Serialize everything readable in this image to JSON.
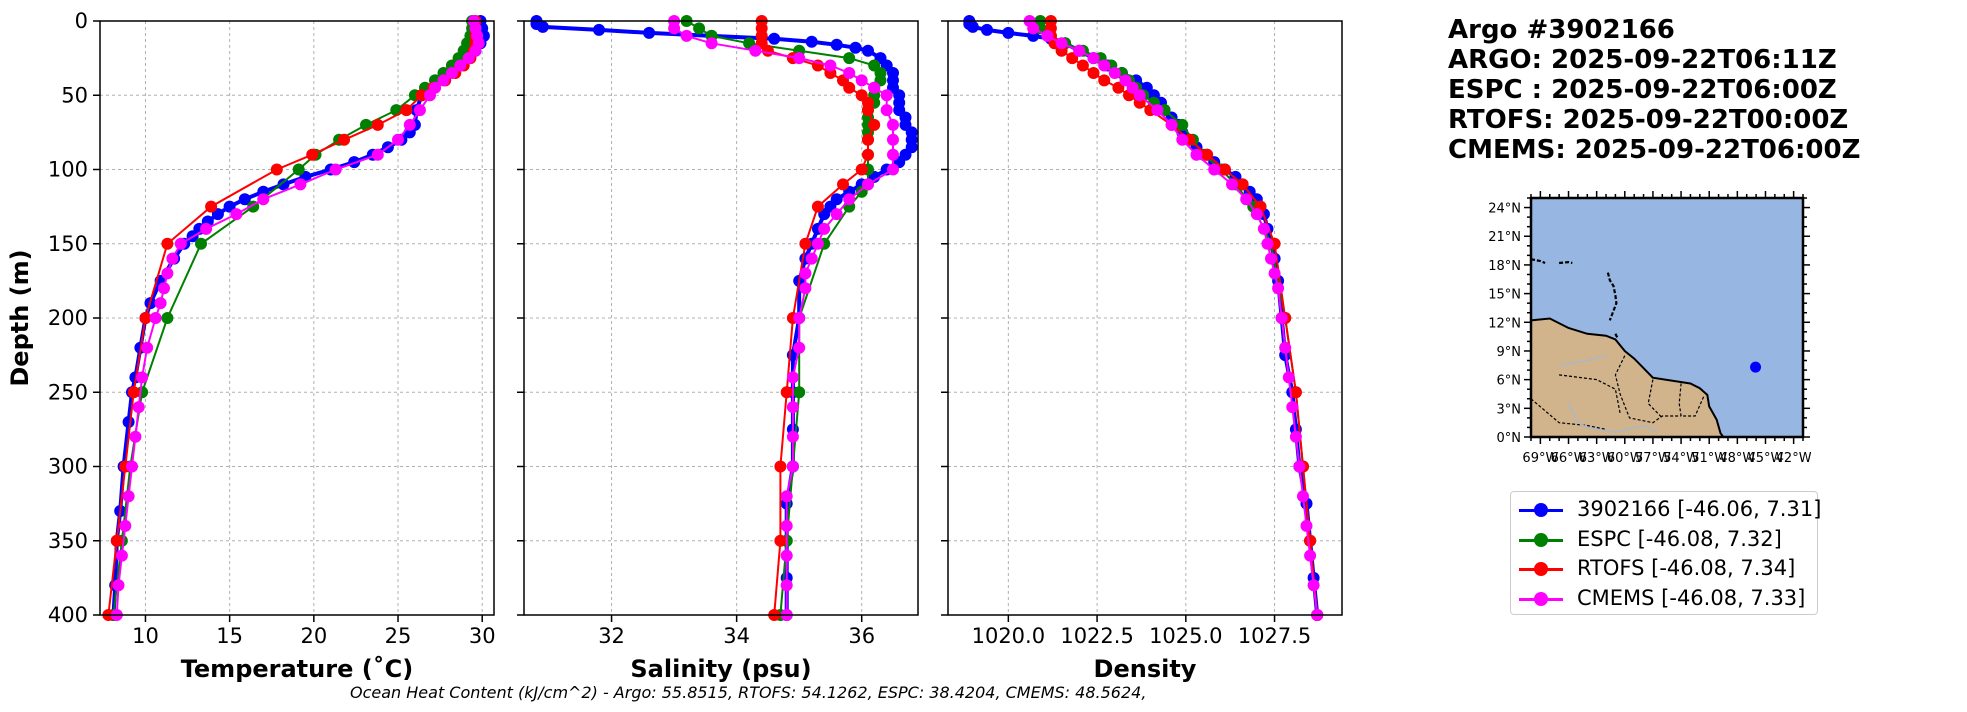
{
  "info": {
    "line1": "Argo #3902166",
    "line2": "ARGO: 2025-09-22T06:11Z",
    "line3": "ESPC : 2025-09-22T06:00Z",
    "line4": "RTOFS: 2025-09-22T00:00Z",
    "line5": "CMEMS: 2025-09-22T06:00Z"
  },
  "footer": "Ocean Heat Content (kJ/cm^2) - Argo: 55.8515,  RTOFS: 54.1262,  ESPC: 38.4204,  CMEMS: 48.5624,",
  "colors": {
    "argo": "#0000ff",
    "espc": "#008000",
    "rtofs": "#ff0000",
    "cmems": "#ff00ff",
    "ocean": "#97b6e1",
    "land": "#d2b48c"
  },
  "legend": [
    {
      "label": "3902166 [-46.06, 7.31]",
      "color": "#0000ff"
    },
    {
      "label": "ESPC [-46.08, 7.32]",
      "color": "#008000"
    },
    {
      "label": "RTOFS [-46.08, 7.34]",
      "color": "#ff0000"
    },
    {
      "label": "CMEMS [-46.08, 7.33]",
      "color": "#ff00ff"
    }
  ],
  "chart_data": [
    {
      "type": "line",
      "title": "",
      "xlabel": "Temperature (˚C)",
      "ylabel": "Depth (m)",
      "xlim": [
        7.3,
        30.7
      ],
      "ylim": [
        400,
        0
      ],
      "xticks": [
        10,
        15,
        20,
        25,
        30
      ],
      "yticks": [
        0,
        50,
        100,
        150,
        200,
        250,
        300,
        350,
        400
      ],
      "grid": true,
      "series": [
        {
          "name": "3902166",
          "color": "#0000ff",
          "dense": true,
          "depth": [
            0,
            5,
            10,
            15,
            20,
            30,
            40,
            50,
            60,
            70,
            75,
            80,
            85,
            90,
            95,
            100,
            105,
            110,
            115,
            120,
            125,
            130,
            135,
            140,
            145,
            150,
            160,
            175,
            190,
            200,
            220,
            240,
            250,
            270,
            300,
            330,
            350,
            380,
            400
          ],
          "values": [
            29.9,
            30.0,
            30.1,
            29.9,
            29.6,
            28.6,
            27.2,
            26.4,
            26.1,
            26.0,
            25.7,
            25.2,
            24.4,
            23.5,
            22.4,
            21.0,
            19.5,
            18.2,
            17.0,
            15.9,
            15.0,
            14.3,
            13.7,
            13.2,
            12.8,
            12.3,
            11.7,
            10.9,
            10.3,
            10.0,
            9.7,
            9.4,
            9.2,
            9.0,
            8.7,
            8.5,
            8.3,
            8.2,
            8.1
          ]
        },
        {
          "name": "ESPC",
          "color": "#008000",
          "dense": false,
          "depth": [
            0,
            5,
            10,
            15,
            20,
            25,
            30,
            35,
            40,
            45,
            50,
            60,
            70,
            80,
            90,
            100,
            125,
            150,
            200,
            250,
            300,
            350,
            400
          ],
          "values": [
            29.4,
            29.4,
            29.3,
            29.1,
            28.9,
            28.6,
            28.2,
            27.7,
            27.2,
            26.6,
            26.0,
            24.9,
            23.1,
            21.5,
            20.1,
            19.1,
            16.4,
            13.3,
            11.3,
            9.8,
            9.1,
            8.6,
            8.1
          ]
        },
        {
          "name": "RTOFS",
          "color": "#ff0000",
          "dense": false,
          "depth": [
            0,
            5,
            10,
            15,
            20,
            25,
            30,
            35,
            40,
            45,
            50,
            60,
            70,
            80,
            90,
            100,
            125,
            150,
            200,
            250,
            300,
            350,
            400
          ],
          "values": [
            29.6,
            29.6,
            29.6,
            29.6,
            29.5,
            29.3,
            28.9,
            28.4,
            27.8,
            27.1,
            26.4,
            25.5,
            23.8,
            21.8,
            19.9,
            17.8,
            13.9,
            11.3,
            10.0,
            9.3,
            8.8,
            8.3,
            7.8
          ]
        },
        {
          "name": "CMEMS",
          "color": "#ff00ff",
          "dense": false,
          "depth": [
            0,
            5,
            10,
            15,
            20,
            25,
            30,
            35,
            40,
            45,
            50,
            60,
            70,
            80,
            90,
            100,
            110,
            120,
            130,
            140,
            150,
            160,
            170,
            180,
            190,
            200,
            220,
            240,
            260,
            280,
            300,
            320,
            340,
            360,
            380,
            400
          ],
          "values": [
            29.5,
            29.6,
            29.7,
            29.8,
            29.6,
            29.2,
            28.7,
            28.2,
            27.7,
            27.2,
            26.9,
            26.3,
            25.7,
            25.0,
            23.8,
            21.3,
            19.2,
            17.0,
            15.4,
            13.6,
            12.1,
            11.6,
            11.3,
            11.1,
            10.9,
            10.6,
            10.1,
            9.8,
            9.6,
            9.4,
            9.2,
            9.0,
            8.8,
            8.6,
            8.4,
            8.3
          ]
        }
      ]
    },
    {
      "type": "line",
      "title": "",
      "xlabel": "Salinity (psu)",
      "ylabel": "",
      "xlim": [
        30.6,
        36.9
      ],
      "ylim": [
        400,
        0
      ],
      "xticks": [
        32,
        34,
        36
      ],
      "yticks": [
        0,
        50,
        100,
        150,
        200,
        250,
        300,
        350,
        400
      ],
      "grid": true,
      "series": [
        {
          "name": "3902166",
          "color": "#0000ff",
          "dense": true,
          "depth": [
            0,
            2,
            4,
            6,
            8,
            10,
            12,
            14,
            16,
            18,
            20,
            25,
            30,
            35,
            40,
            45,
            50,
            55,
            60,
            65,
            70,
            75,
            80,
            85,
            90,
            95,
            100,
            105,
            110,
            115,
            120,
            125,
            130,
            140,
            150,
            160,
            175,
            200,
            225,
            250,
            275,
            300,
            325,
            350,
            375,
            400
          ],
          "values": [
            30.8,
            30.8,
            30.9,
            31.8,
            32.6,
            33.6,
            34.6,
            35.2,
            35.6,
            35.9,
            36.1,
            36.3,
            36.4,
            36.5,
            36.5,
            36.5,
            36.6,
            36.6,
            36.6,
            36.7,
            36.7,
            36.8,
            36.8,
            36.8,
            36.7,
            36.6,
            36.4,
            36.2,
            36.0,
            35.8,
            35.6,
            35.5,
            35.4,
            35.3,
            35.2,
            35.1,
            35.0,
            35.0,
            34.9,
            34.9,
            34.9,
            34.9,
            34.8,
            34.8,
            34.8,
            34.8
          ]
        },
        {
          "name": "ESPC",
          "color": "#008000",
          "dense": false,
          "depth": [
            0,
            5,
            10,
            15,
            20,
            25,
            30,
            35,
            40,
            45,
            50,
            55,
            60,
            65,
            70,
            75,
            80,
            90,
            100,
            110,
            115,
            125,
            150,
            200,
            250,
            300,
            350,
            400
          ],
          "values": [
            33.2,
            33.4,
            33.6,
            34.2,
            35.0,
            35.8,
            36.2,
            36.3,
            36.3,
            36.2,
            36.2,
            36.2,
            36.1,
            36.1,
            36.1,
            36.1,
            36.1,
            36.1,
            36.1,
            36.1,
            36.0,
            35.8,
            35.4,
            35.0,
            35.0,
            34.9,
            34.8,
            34.7
          ]
        },
        {
          "name": "RTOFS",
          "color": "#ff0000",
          "dense": false,
          "depth": [
            0,
            5,
            10,
            15,
            20,
            25,
            30,
            35,
            40,
            45,
            50,
            55,
            60,
            70,
            80,
            90,
            100,
            110,
            125,
            150,
            200,
            250,
            300,
            350,
            400
          ],
          "values": [
            34.4,
            34.4,
            34.4,
            34.4,
            34.5,
            34.9,
            35.3,
            35.5,
            35.7,
            35.8,
            36.0,
            36.1,
            36.1,
            36.2,
            36.1,
            36.1,
            36.0,
            35.7,
            35.3,
            35.1,
            34.9,
            34.8,
            34.7,
            34.7,
            34.6
          ]
        },
        {
          "name": "CMEMS",
          "color": "#ff00ff",
          "dense": false,
          "depth": [
            0,
            5,
            10,
            15,
            20,
            25,
            30,
            35,
            40,
            45,
            50,
            60,
            70,
            80,
            90,
            100,
            110,
            120,
            130,
            140,
            150,
            160,
            170,
            180,
            200,
            220,
            240,
            260,
            280,
            300,
            320,
            340,
            360,
            380,
            400
          ],
          "values": [
            33.0,
            33.0,
            33.2,
            33.6,
            34.3,
            35.0,
            35.5,
            35.8,
            36.0,
            36.2,
            36.4,
            36.4,
            36.5,
            36.5,
            36.5,
            36.5,
            36.1,
            35.8,
            35.6,
            35.4,
            35.3,
            35.2,
            35.1,
            35.1,
            35.0,
            35.0,
            34.9,
            34.9,
            34.9,
            34.9,
            34.8,
            34.8,
            34.8,
            34.8,
            34.8
          ]
        }
      ]
    },
    {
      "type": "line",
      "title": "",
      "xlabel": "Density",
      "ylabel": "",
      "xlim": [
        1018.3,
        1029.4
      ],
      "ylim": [
        400,
        0
      ],
      "xticks": [
        1020.0,
        1022.5,
        1025.0,
        1027.5
      ],
      "yticks": [
        0,
        50,
        100,
        150,
        200,
        250,
        300,
        350,
        400
      ],
      "grid": true,
      "series": [
        {
          "name": "3902166",
          "color": "#0000ff",
          "dense": true,
          "depth": [
            0,
            2,
            4,
            6,
            8,
            10,
            12,
            15,
            20,
            25,
            30,
            35,
            40,
            45,
            50,
            55,
            60,
            65,
            70,
            75,
            80,
            85,
            90,
            95,
            100,
            105,
            110,
            115,
            120,
            125,
            130,
            140,
            150,
            160,
            175,
            200,
            225,
            250,
            275,
            300,
            325,
            350,
            375,
            400
          ],
          "values": [
            1018.9,
            1018.9,
            1019.0,
            1019.4,
            1020.0,
            1020.7,
            1021.2,
            1021.6,
            1022.0,
            1022.4,
            1022.8,
            1023.2,
            1023.6,
            1023.9,
            1024.1,
            1024.3,
            1024.4,
            1024.6,
            1024.8,
            1024.9,
            1025.1,
            1025.3,
            1025.6,
            1025.8,
            1026.1,
            1026.4,
            1026.6,
            1026.8,
            1027.0,
            1027.1,
            1027.2,
            1027.3,
            1027.4,
            1027.5,
            1027.6,
            1027.7,
            1027.8,
            1028.0,
            1028.1,
            1028.2,
            1028.4,
            1028.5,
            1028.6,
            1028.7
          ]
        },
        {
          "name": "ESPC",
          "color": "#008000",
          "dense": false,
          "depth": [
            0,
            5,
            10,
            15,
            20,
            25,
            30,
            35,
            40,
            45,
            50,
            55,
            60,
            70,
            80,
            90,
            100,
            110,
            125,
            150,
            200,
            250,
            300,
            350,
            400
          ],
          "values": [
            1020.9,
            1020.9,
            1021.2,
            1021.6,
            1022.1,
            1022.6,
            1022.9,
            1023.2,
            1023.4,
            1023.6,
            1023.8,
            1024.1,
            1024.4,
            1024.9,
            1025.2,
            1025.5,
            1026.0,
            1026.4,
            1026.9,
            1027.4,
            1027.8,
            1028.1,
            1028.3,
            1028.5,
            1028.7
          ]
        },
        {
          "name": "RTOFS",
          "color": "#ff0000",
          "dense": false,
          "depth": [
            0,
            5,
            10,
            15,
            20,
            25,
            30,
            35,
            40,
            45,
            50,
            55,
            60,
            70,
            80,
            90,
            100,
            110,
            125,
            150,
            200,
            250,
            300,
            350,
            400
          ],
          "values": [
            1021.2,
            1021.2,
            1021.2,
            1021.3,
            1021.5,
            1021.8,
            1022.1,
            1022.4,
            1022.7,
            1023.1,
            1023.4,
            1023.7,
            1024.0,
            1024.6,
            1025.1,
            1025.6,
            1026.1,
            1026.6,
            1027.1,
            1027.5,
            1027.8,
            1028.1,
            1028.3,
            1028.5,
            1028.7
          ]
        },
        {
          "name": "CMEMS",
          "color": "#ff00ff",
          "dense": false,
          "depth": [
            0,
            5,
            10,
            15,
            20,
            25,
            30,
            35,
            40,
            45,
            50,
            60,
            70,
            80,
            90,
            100,
            110,
            120,
            130,
            140,
            150,
            160,
            170,
            180,
            200,
            220,
            240,
            260,
            280,
            300,
            320,
            340,
            360,
            380,
            400
          ],
          "values": [
            1020.6,
            1020.7,
            1021.1,
            1021.5,
            1022.0,
            1022.4,
            1022.7,
            1023.0,
            1023.3,
            1023.5,
            1023.7,
            1024.2,
            1024.6,
            1024.9,
            1025.3,
            1025.8,
            1026.3,
            1026.7,
            1027.0,
            1027.2,
            1027.3,
            1027.4,
            1027.5,
            1027.6,
            1027.7,
            1027.8,
            1027.9,
            1028.0,
            1028.1,
            1028.2,
            1028.3,
            1028.4,
            1028.5,
            1028.6,
            1028.7
          ]
        }
      ]
    },
    {
      "type": "map",
      "lat_labels": [
        "0°N",
        "3°N",
        "6°N",
        "9°N",
        "12°N",
        "15°N",
        "18°N",
        "21°N",
        "24°N"
      ],
      "lon_labels": [
        "69°W",
        "66°W",
        "63°W",
        "60°W",
        "57°W",
        "54°W",
        "51°W",
        "48°W",
        "45°W",
        "42°W"
      ],
      "lon_range": [
        -70,
        -41
      ],
      "lat_range": [
        0,
        25
      ],
      "float_position": {
        "lon": -46.06,
        "lat": 7.31
      }
    }
  ]
}
